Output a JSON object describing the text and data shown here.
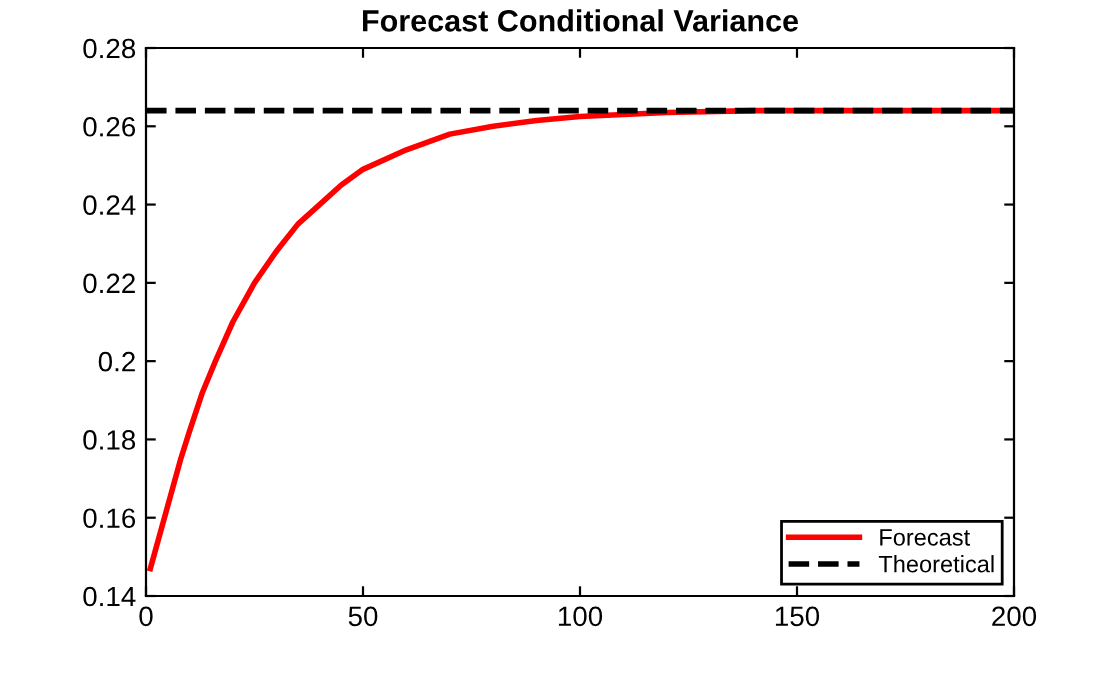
{
  "chart_data": {
    "type": "line",
    "title": "Forecast Conditional Variance",
    "series": [
      {
        "name": "Forecast",
        "color": "#ff0000",
        "line_style": "solid",
        "x": [
          1,
          3,
          5,
          8,
          10,
          13,
          16,
          20,
          25,
          30,
          35,
          40,
          45,
          50,
          60,
          70,
          80,
          90,
          100,
          120,
          140,
          160,
          180,
          200
        ],
        "values": [
          0.147,
          0.155,
          0.163,
          0.175,
          0.182,
          0.192,
          0.2,
          0.21,
          0.22,
          0.228,
          0.235,
          0.24,
          0.245,
          0.249,
          0.254,
          0.258,
          0.26,
          0.2615,
          0.2625,
          0.2635,
          0.264,
          0.264,
          0.264,
          0.264
        ]
      },
      {
        "name": "Theoretical",
        "color": "#000000",
        "line_style": "dashed",
        "x": [
          0,
          200
        ],
        "values": [
          0.264,
          0.264
        ]
      }
    ],
    "xlim": [
      0,
      200
    ],
    "xticks": [
      0,
      50,
      100,
      150,
      200
    ],
    "ylim": [
      0.14,
      0.28
    ],
    "yticks": [
      0.14,
      0.16,
      0.18,
      0.2,
      0.22,
      0.24,
      0.26,
      0.28
    ],
    "grid": false,
    "legend": "bottom right"
  }
}
